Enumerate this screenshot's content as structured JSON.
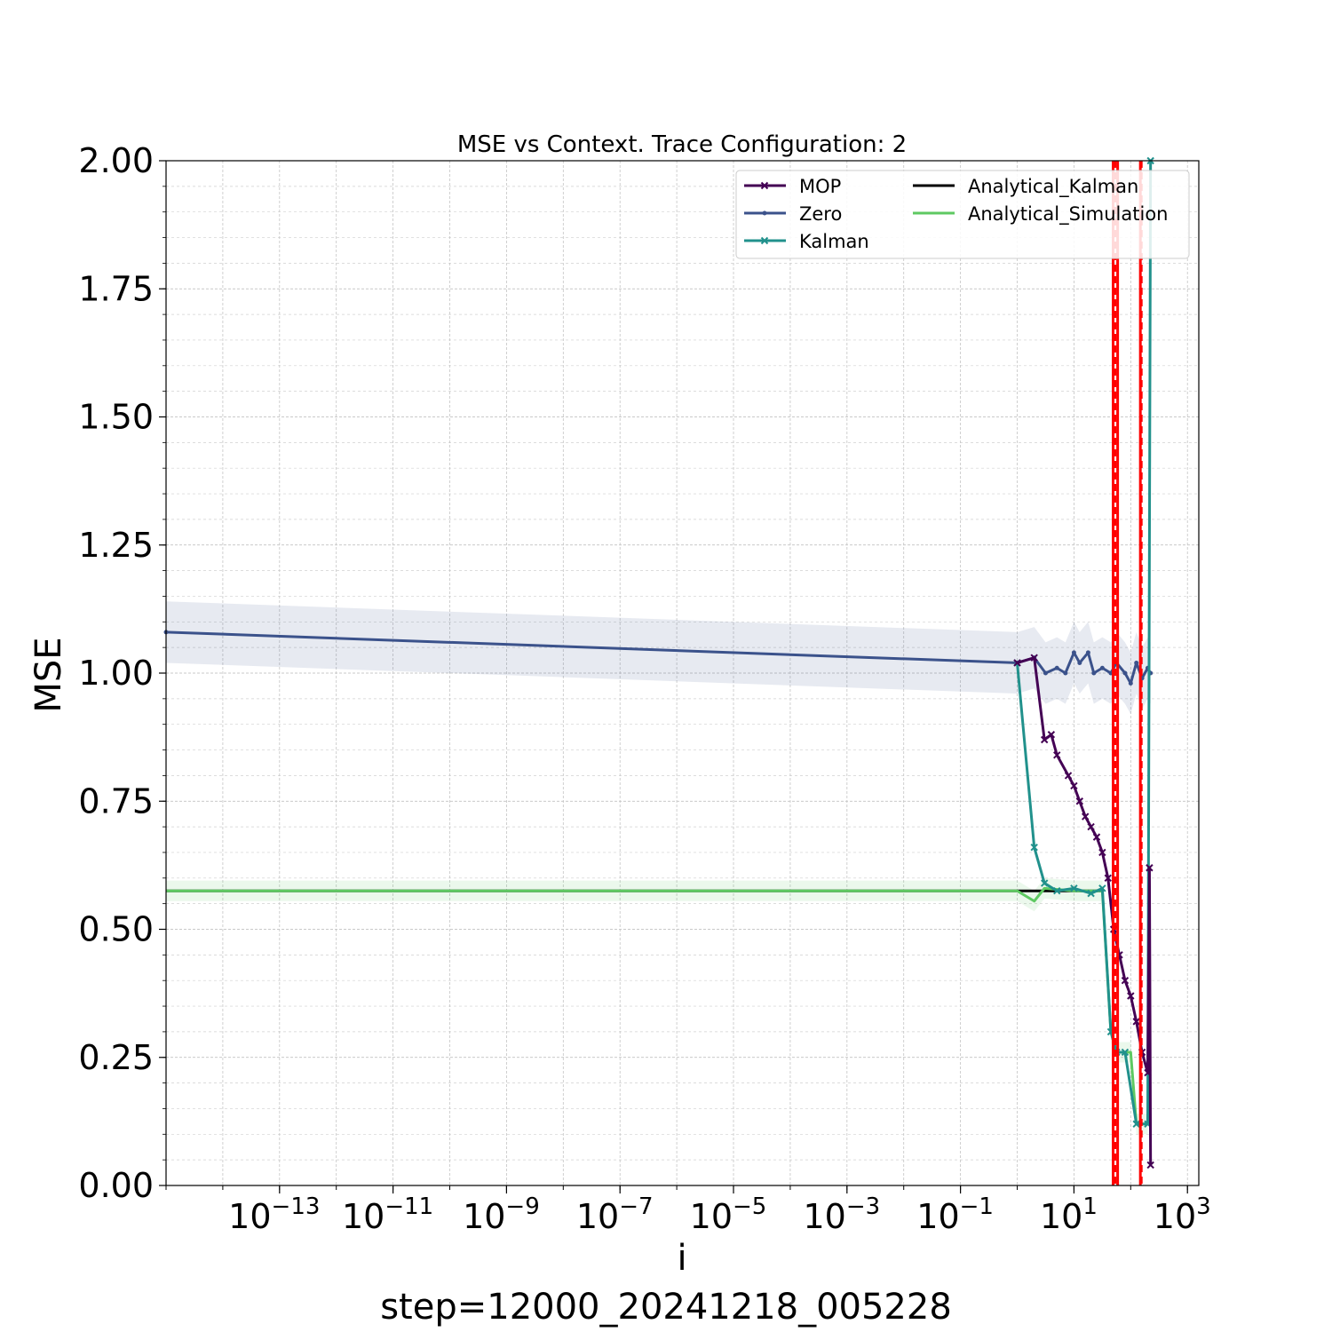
{
  "chart_data": {
    "type": "line",
    "title": "MSE vs Context. Trace Configuration: 2",
    "xlabel": "i",
    "ylabel": "MSE",
    "footer": "step=12000_20241218_005228",
    "x_scale": "log",
    "xlim_log10": [
      -15,
      3.2
    ],
    "ylim": [
      0,
      2.0
    ],
    "grid": true,
    "legend_position": "top-right",
    "x_ticks": [
      {
        "base": "10",
        "exp": "−13",
        "log": -13
      },
      {
        "base": "10",
        "exp": "−11",
        "log": -11
      },
      {
        "base": "10",
        "exp": "−9",
        "log": -9
      },
      {
        "base": "10",
        "exp": "−7",
        "log": -7
      },
      {
        "base": "10",
        "exp": "−5",
        "log": -5
      },
      {
        "base": "10",
        "exp": "−3",
        "log": -3
      },
      {
        "base": "10",
        "exp": "−1",
        "log": -1
      },
      {
        "base": "10",
        "exp": "1",
        "log": 1
      },
      {
        "base": "10",
        "exp": "3",
        "log": 3
      }
    ],
    "y_ticks": [
      "0.00",
      "0.25",
      "0.50",
      "0.75",
      "1.00",
      "1.25",
      "1.50",
      "1.75",
      "2.00"
    ],
    "legend": [
      {
        "name": "MOP",
        "color": "#440154",
        "marker": "x"
      },
      {
        "name": "Zero",
        "color": "#3b528b",
        "marker": "dot"
      },
      {
        "name": "Kalman",
        "color": "#21918c",
        "marker": "x"
      },
      {
        "name": "Analytical_Kalman",
        "color": "#000000",
        "marker": "none"
      },
      {
        "name": "Analytical_Simulation",
        "color": "#5ec962",
        "marker": "none"
      }
    ],
    "series": [
      {
        "name": "Zero",
        "color": "#3b528b",
        "points": [
          [
            -15,
            1.08
          ],
          [
            0,
            1.02
          ],
          [
            0.3,
            1.03
          ],
          [
            0.5,
            1.0
          ],
          [
            0.7,
            1.01
          ],
          [
            0.85,
            1.0
          ],
          [
            1.0,
            1.04
          ],
          [
            1.1,
            1.02
          ],
          [
            1.25,
            1.04
          ],
          [
            1.35,
            1.0
          ],
          [
            1.5,
            1.01
          ],
          [
            1.65,
            1.0
          ],
          [
            1.75,
            1.02
          ],
          [
            1.9,
            1.0
          ],
          [
            2.0,
            0.98
          ],
          [
            2.1,
            1.02
          ],
          [
            2.2,
            0.99
          ],
          [
            2.3,
            1.01
          ],
          [
            2.35,
            1.0
          ]
        ],
        "band": [
          0.06,
          0.06
        ]
      },
      {
        "name": "MOP",
        "color": "#440154",
        "points": [
          [
            0,
            1.02
          ],
          [
            0.3,
            1.03
          ],
          [
            0.48,
            0.87
          ],
          [
            0.6,
            0.88
          ],
          [
            0.7,
            0.84
          ],
          [
            0.9,
            0.8
          ],
          [
            1.0,
            0.78
          ],
          [
            1.1,
            0.75
          ],
          [
            1.2,
            0.72
          ],
          [
            1.3,
            0.7
          ],
          [
            1.4,
            0.68
          ],
          [
            1.5,
            0.65
          ],
          [
            1.6,
            0.6
          ],
          [
            1.7,
            0.5
          ],
          [
            1.8,
            0.45
          ],
          [
            1.9,
            0.4
          ],
          [
            2.0,
            0.37
          ],
          [
            2.1,
            0.32
          ],
          [
            2.2,
            0.26
          ],
          [
            2.3,
            0.22
          ],
          [
            2.33,
            0.62
          ],
          [
            2.35,
            0.04
          ]
        ]
      },
      {
        "name": "Kalman",
        "color": "#21918c",
        "points": [
          [
            0,
            1.02
          ],
          [
            0.3,
            0.66
          ],
          [
            0.48,
            0.59
          ],
          [
            0.7,
            0.575
          ],
          [
            1.0,
            0.58
          ],
          [
            1.3,
            0.57
          ],
          [
            1.5,
            0.58
          ],
          [
            1.65,
            0.3
          ],
          [
            1.75,
            0.26
          ],
          [
            1.9,
            0.26
          ],
          [
            2.1,
            0.12
          ],
          [
            2.3,
            0.12
          ],
          [
            2.35,
            2.0
          ]
        ]
      },
      {
        "name": "Analytical_Kalman",
        "color": "#000000",
        "points": [
          [
            -15,
            0.575
          ],
          [
            1.5,
            0.575
          ]
        ]
      },
      {
        "name": "Analytical_Simulation",
        "color": "#5ec962",
        "points": [
          [
            -15,
            0.575
          ],
          [
            0,
            0.575
          ],
          [
            0.3,
            0.555
          ],
          [
            0.48,
            0.58
          ],
          [
            1.0,
            0.575
          ],
          [
            1.5,
            0.575
          ],
          [
            1.65,
            0.3
          ],
          [
            1.75,
            0.26
          ],
          [
            2.0,
            0.26
          ],
          [
            2.1,
            0.12
          ],
          [
            2.3,
            0.12
          ]
        ],
        "band": [
          0.02,
          0.02
        ]
      }
    ],
    "vertical_markers": [
      {
        "log_x": 1.69,
        "color": "#ff0000",
        "style": "solid"
      },
      {
        "log_x": 1.77,
        "color": "#ff0000",
        "style": "solid"
      },
      {
        "log_x": 2.17,
        "color": "#ff0000",
        "style": "solid"
      },
      {
        "log_x": 1.73,
        "color": "#ff0000",
        "style": "dashed"
      },
      {
        "log_x": 2.19,
        "color": "#ff0000",
        "style": "dashed"
      }
    ]
  }
}
